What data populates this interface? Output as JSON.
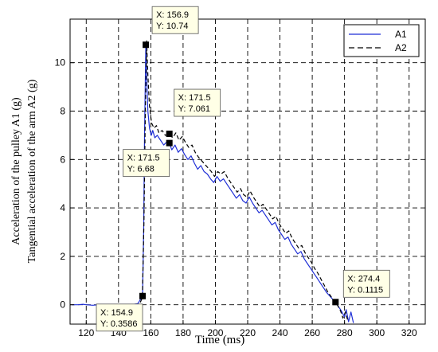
{
  "chart_data": {
    "type": "line",
    "title": "",
    "xlabel": "Time (ms)",
    "ylabel_lines": [
      "Acceleration of the pulley A1 (g)",
      "Tangential acceleration of the arm A2 (g)"
    ],
    "xlim": [
      110,
      330
    ],
    "ylim": [
      -0.8,
      11.8
    ],
    "xticks": [
      120,
      140,
      160,
      180,
      200,
      220,
      240,
      260,
      280,
      300,
      320
    ],
    "yticks": [
      0,
      2,
      4,
      6,
      8,
      10
    ],
    "grid": true,
    "legend": {
      "position": "top-right",
      "entries": [
        "A1",
        "A2"
      ]
    },
    "series": [
      {
        "name": "A1",
        "color": "#1f2fd6",
        "dash": "solid",
        "points": [
          [
            111,
            0.0
          ],
          [
            115,
            0.0
          ],
          [
            118,
            0.02
          ],
          [
            120,
            0.0
          ],
          [
            124,
            -0.02
          ],
          [
            128,
            0.0
          ],
          [
            132,
            0.01
          ],
          [
            136,
            0.0
          ],
          [
            140,
            0.0
          ],
          [
            144,
            0.01
          ],
          [
            148,
            0.0
          ],
          [
            152,
            0.05
          ],
          [
            154.9,
            0.3586
          ],
          [
            155.6,
            3.0
          ],
          [
            156.1,
            7.0
          ],
          [
            156.9,
            10.74
          ],
          [
            157.5,
            9.3
          ],
          [
            158.2,
            8.0
          ],
          [
            159.2,
            7.3
          ],
          [
            160.3,
            7.0
          ],
          [
            161.2,
            7.2
          ],
          [
            162.5,
            6.9
          ],
          [
            164,
            7.0
          ],
          [
            166,
            6.8
          ],
          [
            168,
            6.6
          ],
          [
            169.5,
            6.7
          ],
          [
            171.5,
            6.68
          ],
          [
            173,
            6.4
          ],
          [
            175,
            6.6
          ],
          [
            177,
            6.3
          ],
          [
            179,
            6.45
          ],
          [
            181,
            6.2
          ],
          [
            183,
            6.0
          ],
          [
            185,
            6.15
          ],
          [
            187,
            5.85
          ],
          [
            189,
            5.6
          ],
          [
            191,
            5.75
          ],
          [
            193,
            5.5
          ],
          [
            195,
            5.4
          ],
          [
            197,
            5.2
          ],
          [
            199,
            5.05
          ],
          [
            201,
            5.3
          ],
          [
            203,
            5.1
          ],
          [
            205,
            5.2
          ],
          [
            207,
            5.0
          ],
          [
            209,
            4.8
          ],
          [
            211,
            4.6
          ],
          [
            213,
            4.4
          ],
          [
            215,
            4.55
          ],
          [
            217,
            4.3
          ],
          [
            219,
            4.2
          ],
          [
            221,
            4.45
          ],
          [
            223,
            4.2
          ],
          [
            225,
            4.0
          ],
          [
            227,
            3.8
          ],
          [
            229,
            3.9
          ],
          [
            231,
            3.7
          ],
          [
            233,
            3.5
          ],
          [
            235,
            3.3
          ],
          [
            237,
            3.4
          ],
          [
            239,
            3.1
          ],
          [
            241,
            2.9
          ],
          [
            243,
            2.7
          ],
          [
            245,
            2.8
          ],
          [
            247,
            2.5
          ],
          [
            249,
            2.3
          ],
          [
            251,
            2.1
          ],
          [
            253,
            2.2
          ],
          [
            255,
            1.9
          ],
          [
            257,
            1.7
          ],
          [
            259,
            1.5
          ],
          [
            261,
            1.3
          ],
          [
            263,
            1.1
          ],
          [
            265,
            0.9
          ],
          [
            267,
            0.7
          ],
          [
            269,
            0.5
          ],
          [
            271,
            0.35
          ],
          [
            273,
            0.2
          ],
          [
            274.4,
            0.1115
          ],
          [
            276,
            -0.05
          ],
          [
            278,
            -0.25
          ],
          [
            280,
            -0.5
          ],
          [
            281,
            -0.2
          ],
          [
            282.5,
            -0.7
          ],
          [
            284,
            -0.3
          ],
          [
            285.5,
            -0.75
          ]
        ]
      },
      {
        "name": "A2",
        "color": "#000000",
        "dash": "dashed",
        "points": [
          [
            153.5,
            0.1
          ],
          [
            154.8,
            0.3
          ],
          [
            155.8,
            3.5
          ],
          [
            156.6,
            8.0
          ],
          [
            157.4,
            10.9
          ],
          [
            158.2,
            9.5
          ],
          [
            159.2,
            8.2
          ],
          [
            160.5,
            7.5
          ],
          [
            162,
            7.3
          ],
          [
            163.5,
            7.4
          ],
          [
            165,
            7.1
          ],
          [
            167,
            7.2
          ],
          [
            169,
            7.0
          ],
          [
            171.5,
            7.061
          ],
          [
            173.5,
            6.9
          ],
          [
            175.5,
            7.1
          ],
          [
            177.5,
            6.8
          ],
          [
            179.5,
            6.95
          ],
          [
            181.5,
            6.7
          ],
          [
            183.5,
            6.5
          ],
          [
            185.5,
            6.6
          ],
          [
            187.5,
            6.3
          ],
          [
            189.5,
            6.1
          ],
          [
            191.5,
            5.95
          ],
          [
            193.5,
            5.8
          ],
          [
            195.5,
            5.65
          ],
          [
            197.5,
            5.5
          ],
          [
            199.5,
            5.3
          ],
          [
            201.5,
            5.5
          ],
          [
            203.5,
            5.4
          ],
          [
            205.5,
            5.5
          ],
          [
            207.5,
            5.25
          ],
          [
            209.5,
            5.05
          ],
          [
            211.5,
            4.85
          ],
          [
            213.5,
            4.65
          ],
          [
            215.5,
            4.8
          ],
          [
            217.5,
            4.55
          ],
          [
            219.5,
            4.45
          ],
          [
            221.5,
            4.7
          ],
          [
            223.5,
            4.45
          ],
          [
            225.5,
            4.25
          ],
          [
            227.5,
            4.05
          ],
          [
            229.5,
            4.15
          ],
          [
            231.5,
            3.95
          ],
          [
            233.5,
            3.75
          ],
          [
            235.5,
            3.55
          ],
          [
            237.5,
            3.65
          ],
          [
            239.5,
            3.35
          ],
          [
            241.5,
            3.15
          ],
          [
            243.5,
            2.95
          ],
          [
            245.5,
            3.05
          ],
          [
            247.5,
            2.75
          ],
          [
            249.5,
            2.55
          ],
          [
            251.5,
            2.35
          ],
          [
            253.5,
            2.45
          ],
          [
            255.5,
            2.15
          ],
          [
            257.5,
            1.95
          ],
          [
            259.5,
            1.75
          ],
          [
            261.5,
            1.5
          ],
          [
            263.5,
            1.3
          ],
          [
            265.5,
            1.05
          ],
          [
            267.5,
            0.8
          ],
          [
            269.5,
            0.55
          ],
          [
            271.5,
            0.35
          ],
          [
            273.5,
            0.15
          ],
          [
            275.5,
            0.0
          ],
          [
            277.5,
            -0.25
          ],
          [
            279,
            -0.55
          ],
          [
            280.5,
            -0.3
          ],
          [
            282,
            -0.65
          ]
        ]
      }
    ],
    "annotations": [
      {
        "marker_x": 156.9,
        "marker_y": 10.74,
        "label_x": "X: 156.9",
        "label_y": "Y: 10.74"
      },
      {
        "marker_x": 171.5,
        "marker_y": 7.061,
        "label_x": "X: 171.5",
        "label_y": "Y: 7.061"
      },
      {
        "marker_x": 171.5,
        "marker_y": 6.68,
        "label_x": "X: 171.5",
        "label_y": "Y: 6.68"
      },
      {
        "marker_x": 154.9,
        "marker_y": 0.3586,
        "label_x": "X: 154.9",
        "label_y": "Y: 0.3586"
      },
      {
        "marker_x": 274.4,
        "marker_y": 0.1115,
        "label_x": "X: 274.4",
        "label_y": "Y: 0.1115"
      }
    ]
  }
}
